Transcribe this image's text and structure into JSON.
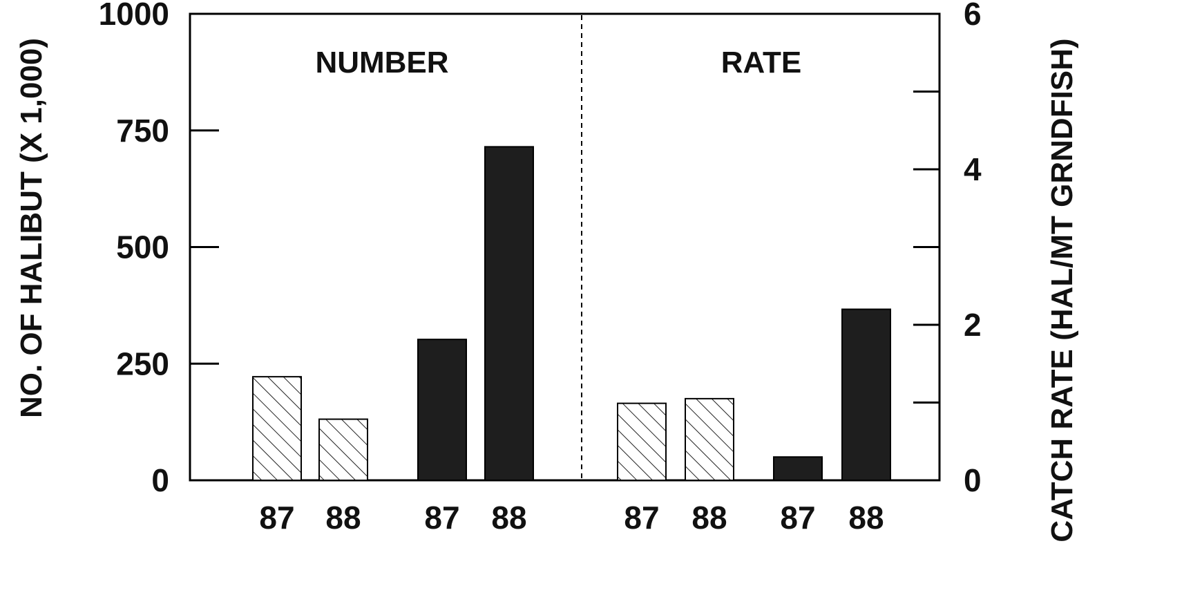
{
  "chart_data": {
    "type": "bar",
    "panels": [
      {
        "label": "NUMBER",
        "axis": "left",
        "bars": [
          {
            "x_label": "87",
            "value": 222,
            "fill": "hatched"
          },
          {
            "x_label": "88",
            "value": 131,
            "fill": "hatched"
          },
          {
            "x_label": "87",
            "value": 302,
            "fill": "solid"
          },
          {
            "x_label": "88",
            "value": 715,
            "fill": "solid"
          }
        ]
      },
      {
        "label": "RATE",
        "axis": "right",
        "bars": [
          {
            "x_label": "87",
            "value": 0.99,
            "fill": "hatched"
          },
          {
            "x_label": "88",
            "value": 1.05,
            "fill": "hatched"
          },
          {
            "x_label": "87",
            "value": 0.3,
            "fill": "solid"
          },
          {
            "x_label": "88",
            "value": 2.2,
            "fill": "solid"
          }
        ]
      }
    ],
    "left_axis": {
      "label": "NO. OF HALIBUT (X 1,000)",
      "min": 0,
      "max": 1000,
      "ticks": [
        0,
        250,
        500,
        750,
        1000
      ]
    },
    "right_axis": {
      "label": "CATCH RATE (HAL/MT GRNDFISH)",
      "min": 0,
      "max": 6,
      "ticks": [
        0,
        2,
        4,
        6
      ],
      "minor_ticks": [
        1,
        3,
        5
      ]
    },
    "colors": {
      "solid": "#1e1e1e",
      "hatched_stroke": "#222222",
      "axis": "#000000"
    }
  }
}
